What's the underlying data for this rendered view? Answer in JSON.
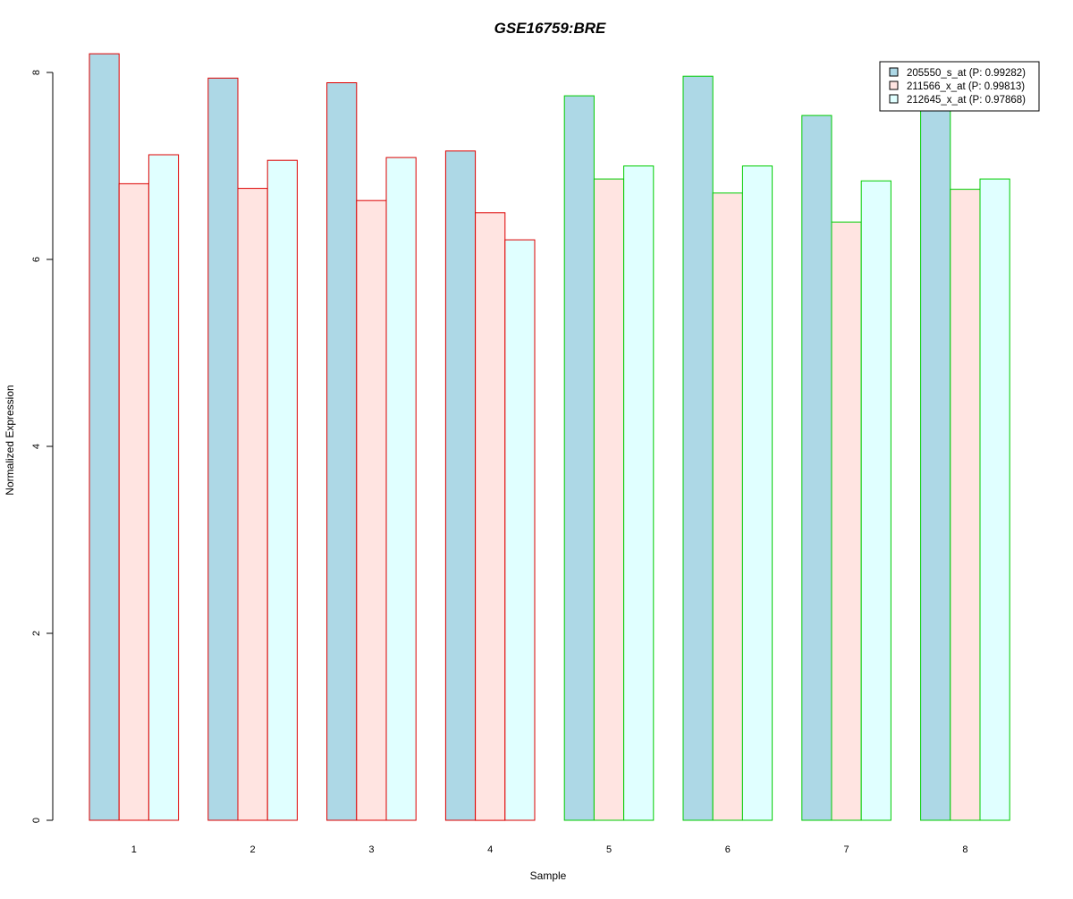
{
  "chart_data": {
    "type": "bar",
    "title": "GSE16759:BRE",
    "title_color": "#0000cc",
    "xlabel": "Sample",
    "ylabel": "Normalized Expression",
    "categories": [
      "1",
      "2",
      "3",
      "4",
      "5",
      "6",
      "7",
      "8"
    ],
    "ylim": [
      0,
      8.2
    ],
    "yticks": [
      {
        "value": 0,
        "label": "0"
      },
      {
        "value": 2,
        "label": "2"
      },
      {
        "value": 4,
        "label": "4"
      },
      {
        "value": 6,
        "label": "6"
      },
      {
        "value": 8,
        "label": "8"
      }
    ],
    "grid": false,
    "legend_position": "top-right",
    "group_border_colors": [
      "#dd0000",
      "#dd0000",
      "#dd0000",
      "#dd0000",
      "#00cc00",
      "#00cc00",
      "#00cc00",
      "#00cc00"
    ],
    "series": [
      {
        "name": "205550_s_at (P: 0.99282)",
        "color": "#add8e6",
        "values": [
          8.2,
          7.94,
          7.89,
          7.16,
          7.75,
          7.96,
          7.54,
          7.62
        ]
      },
      {
        "name": "211566_x_at (P: 0.99813)",
        "color": "#ffe4e1",
        "values": [
          6.81,
          6.76,
          6.63,
          6.5,
          6.86,
          6.71,
          6.4,
          6.75
        ]
      },
      {
        "name": "212645_x_at (P: 0.97868)",
        "color": "#e0ffff",
        "values": [
          7.12,
          7.06,
          7.09,
          6.21,
          7.0,
          7.0,
          6.84,
          6.86
        ]
      }
    ]
  }
}
